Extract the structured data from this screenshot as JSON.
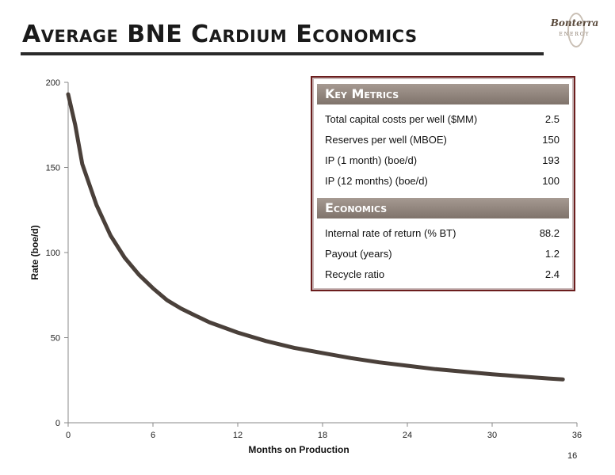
{
  "header": {
    "title": "Average BNE Cardium Economics",
    "logo_text": "Bonterra",
    "logo_sub": "ENERGY"
  },
  "page_number": "16",
  "key_metrics": {
    "title": "Key Metrics",
    "rows": [
      {
        "label": "Total capital costs per well ($MM)",
        "value": "2.5"
      },
      {
        "label": "Reserves per well (MBOE)",
        "value": "150"
      },
      {
        "label": "IP (1 month) (boe/d)",
        "value": "193"
      },
      {
        "label": "IP (12 months) (boe/d)",
        "value": "100"
      }
    ]
  },
  "economics": {
    "title": "Economics",
    "rows": [
      {
        "label": "Internal rate of return (% BT)",
        "value": "88.2"
      },
      {
        "label": "Payout (years)",
        "value": "1.2"
      },
      {
        "label": "Recycle ratio",
        "value": "2.4"
      }
    ]
  },
  "colors": {
    "curve": "#4a403a",
    "axis": "#888888",
    "panel_border": "#6b1d1d"
  },
  "chart_data": {
    "type": "line",
    "title": "",
    "xlabel": "Months on Production",
    "ylabel": "Rate (boe/d)",
    "xlim": [
      0,
      36
    ],
    "ylim": [
      0,
      200
    ],
    "x_ticks": [
      0,
      6,
      12,
      18,
      24,
      30,
      36
    ],
    "y_ticks": [
      0,
      50,
      100,
      150,
      200
    ],
    "grid": false,
    "series": [
      {
        "x": [
          0,
          0.5,
          1,
          2,
          3,
          4,
          5,
          6,
          7,
          8,
          9,
          10,
          11,
          12,
          14,
          16,
          18,
          20,
          22,
          24,
          26,
          28,
          30,
          32,
          34,
          35
        ],
        "y": [
          193,
          175,
          152,
          128,
          110,
          97,
          87,
          79,
          72,
          67,
          63,
          59,
          56,
          53,
          48,
          44,
          41,
          38,
          35.5,
          33.5,
          31.5,
          30,
          28.5,
          27.2,
          26,
          25.5
        ]
      }
    ]
  }
}
